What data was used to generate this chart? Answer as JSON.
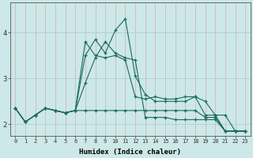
{
  "xlabel": "Humidex (Indice chaleur)",
  "bg_color": "#cce8e8",
  "grid_major_color": "#aacfcf",
  "grid_minor_color": "#bbdddd",
  "line_color": "#1a6b5a",
  "xlim": [
    -0.5,
    23.5
  ],
  "ylim": [
    1.75,
    4.65
  ],
  "xticks": [
    0,
    1,
    2,
    3,
    4,
    5,
    6,
    7,
    8,
    9,
    10,
    11,
    12,
    13,
    14,
    15,
    16,
    17,
    18,
    19,
    20,
    21,
    22,
    23
  ],
  "yticks": [
    2,
    3,
    4
  ],
  "line1": [
    2.35,
    2.05,
    2.2,
    2.35,
    2.3,
    2.25,
    2.3,
    3.8,
    3.5,
    3.45,
    3.5,
    3.4,
    2.6,
    2.55,
    2.6,
    2.55,
    2.55,
    2.6,
    2.6,
    2.5,
    2.2,
    2.2,
    1.85,
    1.85
  ],
  "line2": [
    2.35,
    2.05,
    2.2,
    2.35,
    2.3,
    2.25,
    2.3,
    3.5,
    3.85,
    3.55,
    4.05,
    4.3,
    3.05,
    2.65,
    2.5,
    2.5,
    2.5,
    2.5,
    2.6,
    2.2,
    2.2,
    1.85,
    1.85,
    1.85
  ],
  "line3": [
    2.35,
    2.05,
    2.2,
    2.35,
    2.3,
    2.25,
    2.3,
    2.9,
    3.45,
    3.8,
    3.55,
    3.45,
    3.4,
    2.15,
    2.15,
    2.15,
    2.1,
    2.1,
    2.1,
    2.1,
    2.1,
    1.85,
    1.85,
    1.85
  ],
  "line4": [
    2.35,
    2.05,
    2.2,
    2.35,
    2.3,
    2.25,
    2.3,
    2.3,
    2.3,
    2.3,
    2.3,
    2.3,
    2.3,
    2.3,
    2.3,
    2.3,
    2.3,
    2.3,
    2.3,
    2.15,
    2.15,
    1.85,
    1.85,
    1.85
  ]
}
